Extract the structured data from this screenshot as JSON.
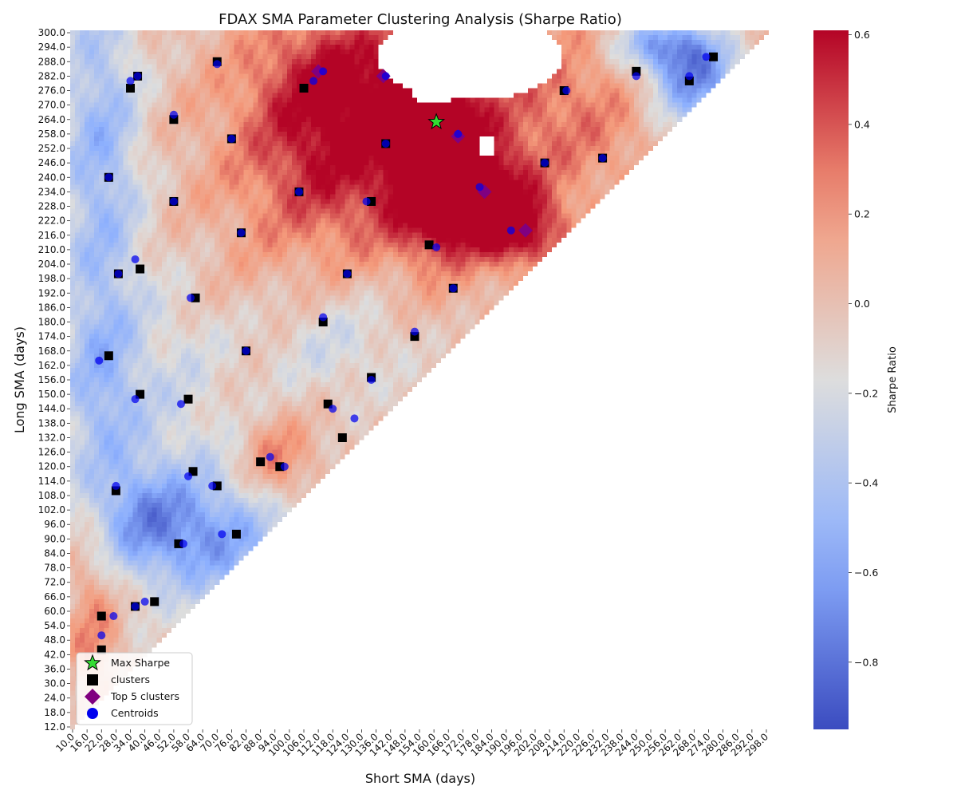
{
  "chart_data": {
    "type": "heatmap",
    "title": "FDAX SMA Parameter Clustering Analysis (Sharpe Ratio)",
    "xlabel": "Short SMA (days)",
    "ylabel": "Long SMA (days)",
    "colorbar_label": "Sharpe Ratio",
    "colormap": "coolwarm",
    "x_range": [
      10,
      298
    ],
    "x_step": 2,
    "y_range": [
      12,
      300
    ],
    "y_step": 2,
    "x_ticks": [
      10,
      16,
      22,
      28,
      34,
      40,
      46,
      52,
      58,
      64,
      70,
      76,
      82,
      88,
      94,
      100,
      106,
      112,
      118,
      124,
      130,
      136,
      142,
      148,
      154,
      160,
      166,
      172,
      178,
      184,
      190,
      196,
      202,
      208,
      214,
      220,
      226,
      232,
      238,
      244,
      250,
      256,
      262,
      268,
      274,
      280,
      286,
      292,
      298
    ],
    "x_tick_labels": [
      "10.0",
      "16.0",
      "22.0",
      "28.0",
      "34.0",
      "40.0",
      "46.0",
      "52.0",
      "58.0",
      "64.0",
      "70.0",
      "76.0",
      "82.0",
      "88.0",
      "94.0",
      "100.0",
      "106.0",
      "112.0",
      "118.0",
      "124.0",
      "130.0",
      "136.0",
      "142.0",
      "148.0",
      "154.0",
      "160.0",
      "166.0",
      "172.0",
      "178.0",
      "184.0",
      "190.0",
      "196.0",
      "202.0",
      "208.0",
      "214.0",
      "220.0",
      "226.0",
      "232.0",
      "238.0",
      "244.0",
      "250.0",
      "256.0",
      "262.0",
      "268.0",
      "274.0",
      "280.0",
      "286.0",
      "292.0",
      "298.0"
    ],
    "y_ticks": [
      300,
      294,
      288,
      282,
      276,
      270,
      264,
      258,
      252,
      246,
      240,
      234,
      228,
      222,
      216,
      210,
      204,
      198,
      192,
      186,
      180,
      174,
      168,
      162,
      156,
      150,
      144,
      138,
      132,
      126,
      120,
      114,
      108,
      102,
      96,
      90,
      84,
      78,
      72,
      66,
      60,
      54,
      48,
      42,
      36,
      30,
      24,
      18,
      12
    ],
    "y_tick_labels": [
      "300.0",
      "294.0",
      "288.0",
      "282.0",
      "276.0",
      "270.0",
      "264.0",
      "258.0",
      "252.0",
      "246.0",
      "240.0",
      "234.0",
      "228.0",
      "222.0",
      "216.0",
      "210.0",
      "204.0",
      "198.0",
      "192.0",
      "186.0",
      "180.0",
      "174.0",
      "168.0",
      "162.0",
      "156.0",
      "150.0",
      "144.0",
      "138.0",
      "132.0",
      "126.0",
      "120.0",
      "114.0",
      "108.0",
      "102.0",
      "96.0",
      "90.0",
      "84.0",
      "78.0",
      "72.0",
      "66.0",
      "60.0",
      "54.0",
      "48.0",
      "42.0",
      "36.0",
      "30.0",
      "24.0",
      "18.0",
      "12.0"
    ],
    "colorbar_range": [
      -0.95,
      0.61
    ],
    "colorbar_ticks": [
      0.6,
      0.4,
      0.2,
      0.0,
      -0.2,
      -0.4,
      -0.6,
      -0.8
    ],
    "colorbar_tick_labels": [
      "0.6",
      "0.4",
      "0.2",
      "0.0",
      "−0.2",
      "−0.4",
      "−0.6",
      "−0.8"
    ],
    "legend_placement": "lower-left",
    "legend": [
      {
        "label": "Max Sharpe",
        "marker": "star",
        "color": "#33dd33"
      },
      {
        "label": "clusters",
        "marker": "square",
        "color": "#000000"
      },
      {
        "label": "Top 5 clusters",
        "marker": "diamond",
        "color": "#800080"
      },
      {
        "label": "Centroids",
        "marker": "circle",
        "color": "#0000ee"
      }
    ],
    "heat_features": [
      {
        "x": 157,
        "y": 262,
        "sx": 10,
        "sy": 28,
        "amp": 0.72
      },
      {
        "x": 166,
        "y": 245,
        "sx": 12,
        "sy": 22,
        "amp": 0.55
      },
      {
        "x": 182,
        "y": 233,
        "sx": 14,
        "sy": 13,
        "amp": 0.55
      },
      {
        "x": 196,
        "y": 217,
        "sx": 14,
        "sy": 10,
        "amp": 0.5
      },
      {
        "x": 130,
        "y": 283,
        "sx": 24,
        "sy": 18,
        "amp": 0.4
      },
      {
        "x": 140,
        "y": 240,
        "sx": 26,
        "sy": 24,
        "amp": 0.35
      },
      {
        "x": 110,
        "y": 262,
        "sx": 20,
        "sy": 28,
        "amp": 0.3
      },
      {
        "x": 205,
        "y": 268,
        "sx": 30,
        "sy": 24,
        "amp": 0.25
      },
      {
        "x": 95,
        "y": 122,
        "sx": 10,
        "sy": 12,
        "amp": 0.3
      },
      {
        "x": 18,
        "y": 55,
        "sx": 8,
        "sy": 25,
        "amp": 0.3
      },
      {
        "x": 85,
        "y": 240,
        "sx": 28,
        "sy": 50,
        "amp": 0.15
      },
      {
        "x": 268,
        "y": 282,
        "sx": 14,
        "sy": 16,
        "amp": -0.8
      },
      {
        "x": 252,
        "y": 295,
        "sx": 14,
        "sy": 8,
        "amp": -0.5
      },
      {
        "x": 22,
        "y": 250,
        "sx": 12,
        "sy": 55,
        "amp": -0.45
      },
      {
        "x": 22,
        "y": 150,
        "sx": 12,
        "sy": 30,
        "amp": -0.35
      },
      {
        "x": 68,
        "y": 90,
        "sx": 24,
        "sy": 18,
        "amp": -0.55
      },
      {
        "x": 38,
        "y": 100,
        "sx": 14,
        "sy": 16,
        "amp": -0.35
      },
      {
        "x": 120,
        "y": 170,
        "sx": 25,
        "sy": 18,
        "amp": -0.25
      },
      {
        "x": 55,
        "y": 150,
        "sx": 18,
        "sy": 40,
        "amp": -0.2
      }
    ],
    "holes": [
      {
        "cx": 160,
        "cy": 277,
        "rx": 10,
        "ry": 7
      },
      {
        "cx": 175,
        "cy": 290,
        "rx": 38,
        "ry": 18
      },
      {
        "cx": 182,
        "cy": 253,
        "rx": 4,
        "ry": 5
      }
    ],
    "clusters": [
      [
        37,
        282
      ],
      [
        70,
        288
      ],
      [
        106,
        277
      ],
      [
        34,
        277
      ],
      [
        52,
        264
      ],
      [
        76,
        256
      ],
      [
        25,
        240
      ],
      [
        52,
        230
      ],
      [
        104,
        234
      ],
      [
        134,
        230
      ],
      [
        80,
        217
      ],
      [
        140,
        254
      ],
      [
        158,
        212
      ],
      [
        124,
        200
      ],
      [
        29,
        200
      ],
      [
        38,
        202
      ],
      [
        61,
        190
      ],
      [
        168,
        194
      ],
      [
        114,
        180
      ],
      [
        152,
        174
      ],
      [
        82,
        168
      ],
      [
        25,
        166
      ],
      [
        134,
        157
      ],
      [
        38,
        150
      ],
      [
        58,
        148
      ],
      [
        116,
        146
      ],
      [
        122,
        132
      ],
      [
        88,
        122
      ],
      [
        96,
        120
      ],
      [
        60,
        118
      ],
      [
        70,
        112
      ],
      [
        28,
        110
      ],
      [
        78,
        92
      ],
      [
        54,
        88
      ],
      [
        36,
        62
      ],
      [
        44,
        64
      ],
      [
        22,
        58
      ],
      [
        22,
        44
      ],
      [
        214,
        276
      ],
      [
        206,
        246
      ],
      [
        230,
        248
      ],
      [
        244,
        284
      ],
      [
        266,
        280
      ],
      [
        276,
        290
      ]
    ],
    "top5_clusters": [
      [
        112,
        284
      ],
      [
        139,
        282
      ],
      [
        170,
        257
      ],
      [
        181,
        234
      ],
      [
        198,
        218
      ]
    ],
    "centroids": [
      [
        37,
        282
      ],
      [
        70,
        287
      ],
      [
        110,
        280
      ],
      [
        114,
        284
      ],
      [
        140,
        282
      ],
      [
        34,
        280
      ],
      [
        52,
        266
      ],
      [
        76,
        256
      ],
      [
        25,
        240
      ],
      [
        52,
        230
      ],
      [
        104,
        234
      ],
      [
        132,
        230
      ],
      [
        80,
        217
      ],
      [
        140,
        254
      ],
      [
        161,
        211
      ],
      [
        124,
        200
      ],
      [
        29,
        200
      ],
      [
        36,
        206
      ],
      [
        59,
        190
      ],
      [
        168,
        194
      ],
      [
        114,
        182
      ],
      [
        152,
        176
      ],
      [
        82,
        168
      ],
      [
        21,
        164
      ],
      [
        134,
        156
      ],
      [
        36,
        148
      ],
      [
        55,
        146
      ],
      [
        118,
        144
      ],
      [
        127,
        140
      ],
      [
        92,
        124
      ],
      [
        98,
        120
      ],
      [
        58,
        116
      ],
      [
        68,
        112
      ],
      [
        28,
        112
      ],
      [
        72,
        92
      ],
      [
        56,
        88
      ],
      [
        36,
        62
      ],
      [
        40,
        64
      ],
      [
        27,
        58
      ],
      [
        22,
        50
      ],
      [
        215,
        276
      ],
      [
        206,
        246
      ],
      [
        230,
        248
      ],
      [
        244,
        282
      ],
      [
        266,
        282
      ],
      [
        273,
        290
      ],
      [
        170,
        258
      ],
      [
        179,
        236
      ],
      [
        192,
        218
      ]
    ],
    "max_sharpe": [
      161,
      263
    ]
  }
}
